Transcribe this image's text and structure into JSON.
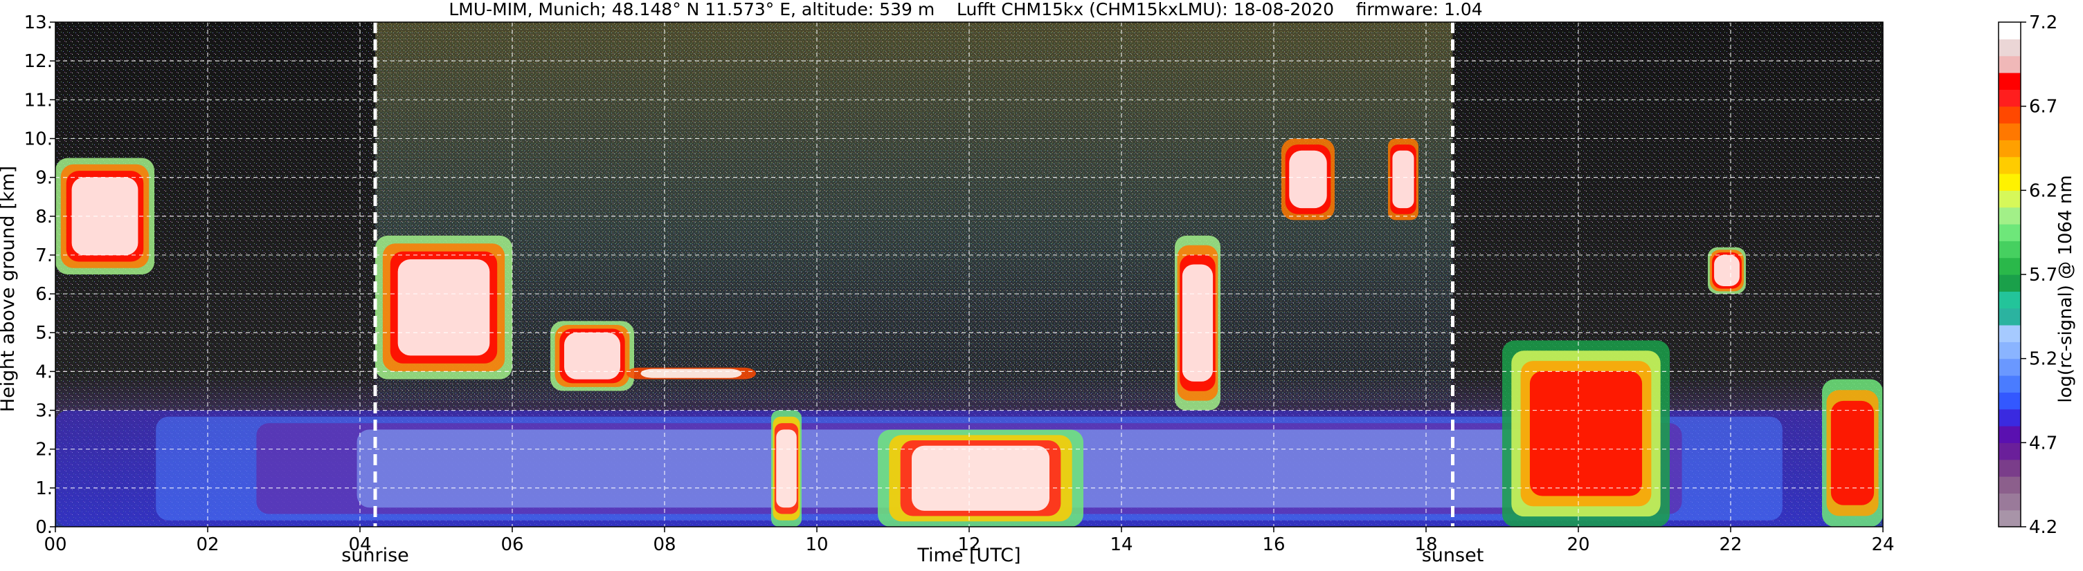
{
  "chart_data": {
    "type": "heatmap",
    "title": "LMU-MIM, Munich; 48.148° N 11.573° E, altitude: 539 m    Lufft CHM15kx (CHM15kxLMU): 18-08-2020    firmware: 1.04",
    "xlabel": "Time [UTC]",
    "ylabel": "Height above ground [km]",
    "xlim": [
      0,
      24
    ],
    "ylim": [
      0,
      13
    ],
    "x_ticks": [
      "00",
      "02",
      "04",
      "06",
      "08",
      "10",
      "12",
      "14",
      "16",
      "18",
      "20",
      "22",
      "24"
    ],
    "y_ticks": [
      "0.",
      "1.",
      "2.",
      "3.",
      "4.",
      "5.",
      "6.",
      "7.",
      "8.",
      "9.",
      "10.",
      "11.",
      "12.",
      "13."
    ],
    "grid": true,
    "events": [
      {
        "label": "sunrise",
        "time": 4.2
      },
      {
        "label": "sunset",
        "time": 18.35
      }
    ],
    "colorbar": {
      "label": "log(rc-signal) @ 1064 nm",
      "range": [
        4.2,
        7.2
      ],
      "ticks": [
        "4.2",
        "4.7",
        "5.2",
        "5.7",
        "6.2",
        "6.7",
        "7.2"
      ],
      "colors": [
        "#a894a8",
        "#9a7a9a",
        "#8c5f8c",
        "#7a3d8a",
        "#6a1f9a",
        "#5a10b0",
        "#3a2ae0",
        "#3358ff",
        "#4a7cff",
        "#6a98ff",
        "#8ab4ff",
        "#a6caff",
        "#2bb3a0",
        "#23c49a",
        "#1aa04a",
        "#2ab84a",
        "#46d060",
        "#6ee77a",
        "#a2f088",
        "#d6f85a",
        "#fff200",
        "#ffcc00",
        "#ffa000",
        "#ff7800",
        "#ff4800",
        "#ff1e1e",
        "#ff0000",
        "#f0b8b8",
        "#ebd6d6",
        "#ffffff"
      ]
    },
    "features": [
      {
        "kind": "boundary layer aerosol",
        "time_range": [
          0,
          24
        ],
        "height_range": [
          0,
          3
        ]
      },
      {
        "kind": "mid-level cloud",
        "time_range": [
          0,
          1.3
        ],
        "height_range": [
          6.5,
          9.5
        ]
      },
      {
        "kind": "mid-level cloud",
        "time_range": [
          4.2,
          6.0
        ],
        "height_range": [
          3.8,
          7.5
        ]
      },
      {
        "kind": "mid-level cloud",
        "time_range": [
          6.5,
          7.6
        ],
        "height_range": [
          3.5,
          5.3
        ]
      },
      {
        "kind": "cloud layer",
        "time_range": [
          7.5,
          9.2
        ],
        "height_range": [
          3.8,
          4.1
        ]
      },
      {
        "kind": "low cloud / precipitation",
        "time_range": [
          9.4,
          9.8
        ],
        "height_range": [
          0,
          3.0
        ]
      },
      {
        "kind": "low cloud / precipitation",
        "time_range": [
          10.8,
          13.5
        ],
        "height_range": [
          0,
          2.5
        ]
      },
      {
        "kind": "mid-level cloud",
        "time_range": [
          14.7,
          15.3
        ],
        "height_range": [
          3.0,
          7.5
        ]
      },
      {
        "kind": "high cloud",
        "time_range": [
          16.1,
          16.8
        ],
        "height_range": [
          7.9,
          10.0
        ]
      },
      {
        "kind": "high cloud",
        "time_range": [
          17.5,
          17.9
        ],
        "height_range": [
          7.9,
          10.0
        ]
      },
      {
        "kind": "convective cloud",
        "time_range": [
          19.0,
          21.2
        ],
        "height_range": [
          0,
          4.8
        ]
      },
      {
        "kind": "mid-level cloud",
        "time_range": [
          21.7,
          22.2
        ],
        "height_range": [
          6.0,
          7.2
        ]
      },
      {
        "kind": "low cloud",
        "time_range": [
          23.2,
          24.0
        ],
        "height_range": [
          0,
          3.8
        ]
      }
    ]
  }
}
